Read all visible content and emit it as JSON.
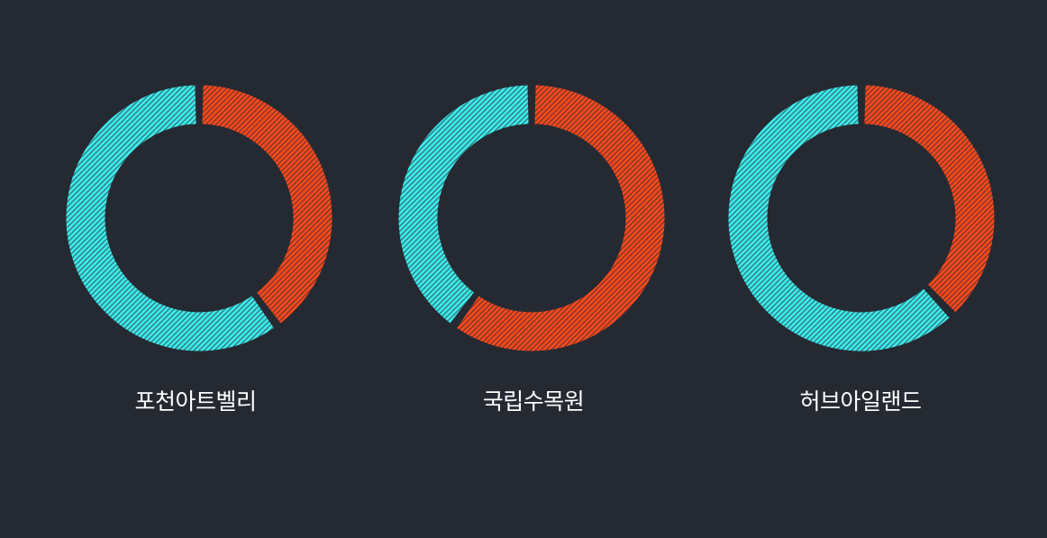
{
  "chart_data": [
    {
      "type": "pie",
      "donut": true,
      "title": "포천아트벨리",
      "slices": [
        {
          "value": 40,
          "color": "#ff4a1c",
          "pattern": "diagonal-hatch"
        },
        {
          "value": 60,
          "color": "#3ff0f0",
          "pattern": "diagonal-hatch"
        }
      ]
    },
    {
      "type": "pie",
      "donut": true,
      "title": "국립수목원",
      "slices": [
        {
          "value": 60,
          "color": "#ff4a1c",
          "pattern": "diagonal-hatch"
        },
        {
          "value": 40,
          "color": "#3ff0f0",
          "pattern": "diagonal-hatch"
        }
      ]
    },
    {
      "type": "pie",
      "donut": true,
      "title": "허브아일랜드",
      "slices": [
        {
          "value": 38,
          "color": "#ff4a1c",
          "pattern": "diagonal-hatch"
        },
        {
          "value": 62,
          "color": "#3ff0f0",
          "pattern": "diagonal-hatch"
        }
      ]
    }
  ],
  "colors": {
    "background": "#252a32",
    "label_text": "#ffffff",
    "separator": "#252a32"
  }
}
